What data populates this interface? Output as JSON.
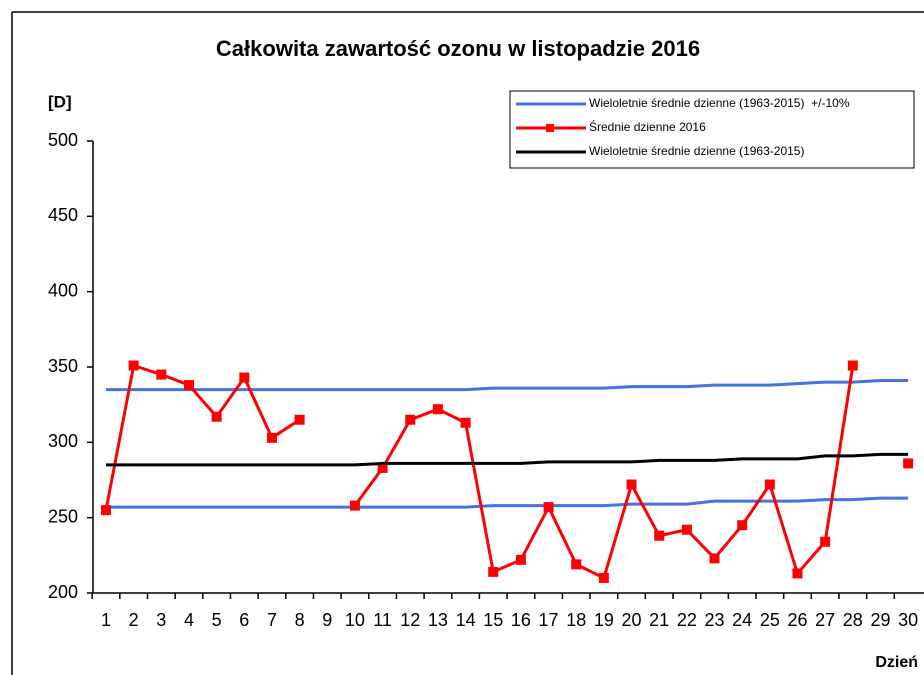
{
  "chart_data": {
    "type": "line",
    "title": "Całkowita zawartość ozonu w listopadzie 2016",
    "y_label": "[D]",
    "x_label": "Dzień",
    "categories": [
      "1",
      "2",
      "3",
      "4",
      "5",
      "6",
      "7",
      "8",
      "9",
      "10",
      "11",
      "12",
      "13",
      "14",
      "15",
      "16",
      "17",
      "18",
      "19",
      "20",
      "21",
      "22",
      "23",
      "24",
      "25",
      "26",
      "27",
      "28",
      "29",
      "30"
    ],
    "series": [
      {
        "name": "Wieloletnie średnie dzienne (1963-2015)  +/-10%",
        "color": "#4472e0",
        "values": [
          335,
          335,
          335,
          335,
          335,
          335,
          335,
          335,
          335,
          335,
          335,
          335,
          335,
          335,
          336,
          336,
          336,
          336,
          336,
          337,
          337,
          337,
          338,
          338,
          338,
          339,
          340,
          340,
          341,
          341
        ],
        "lower_values": [
          257,
          257,
          257,
          257,
          257,
          257,
          257,
          257,
          257,
          257,
          257,
          257,
          257,
          257,
          258,
          258,
          258,
          258,
          258,
          259,
          259,
          259,
          261,
          261,
          261,
          261,
          262,
          262,
          263,
          263
        ]
      },
      {
        "name": "Średnie dzienne 2016",
        "color": "#ff0000",
        "markers": true,
        "values": [
          255,
          351,
          345,
          338,
          317,
          343,
          303,
          315,
          null,
          258,
          283,
          315,
          322,
          313,
          214,
          222,
          257,
          219,
          210,
          272,
          238,
          242,
          223,
          245,
          272,
          213,
          234,
          351,
          null,
          286
        ]
      },
      {
        "name": "Wieloletnie średnie dzienne (1963-2015)",
        "color": "#000000",
        "values": [
          285,
          285,
          285,
          285,
          285,
          285,
          285,
          285,
          285,
          285,
          286,
          286,
          286,
          286,
          286,
          286,
          287,
          287,
          287,
          287,
          288,
          288,
          288,
          289,
          289,
          289,
          291,
          291,
          292,
          292
        ]
      }
    ],
    "ylim": [
      200,
      500
    ],
    "yticks": [
      200,
      250,
      300,
      350,
      400,
      450,
      500
    ]
  }
}
